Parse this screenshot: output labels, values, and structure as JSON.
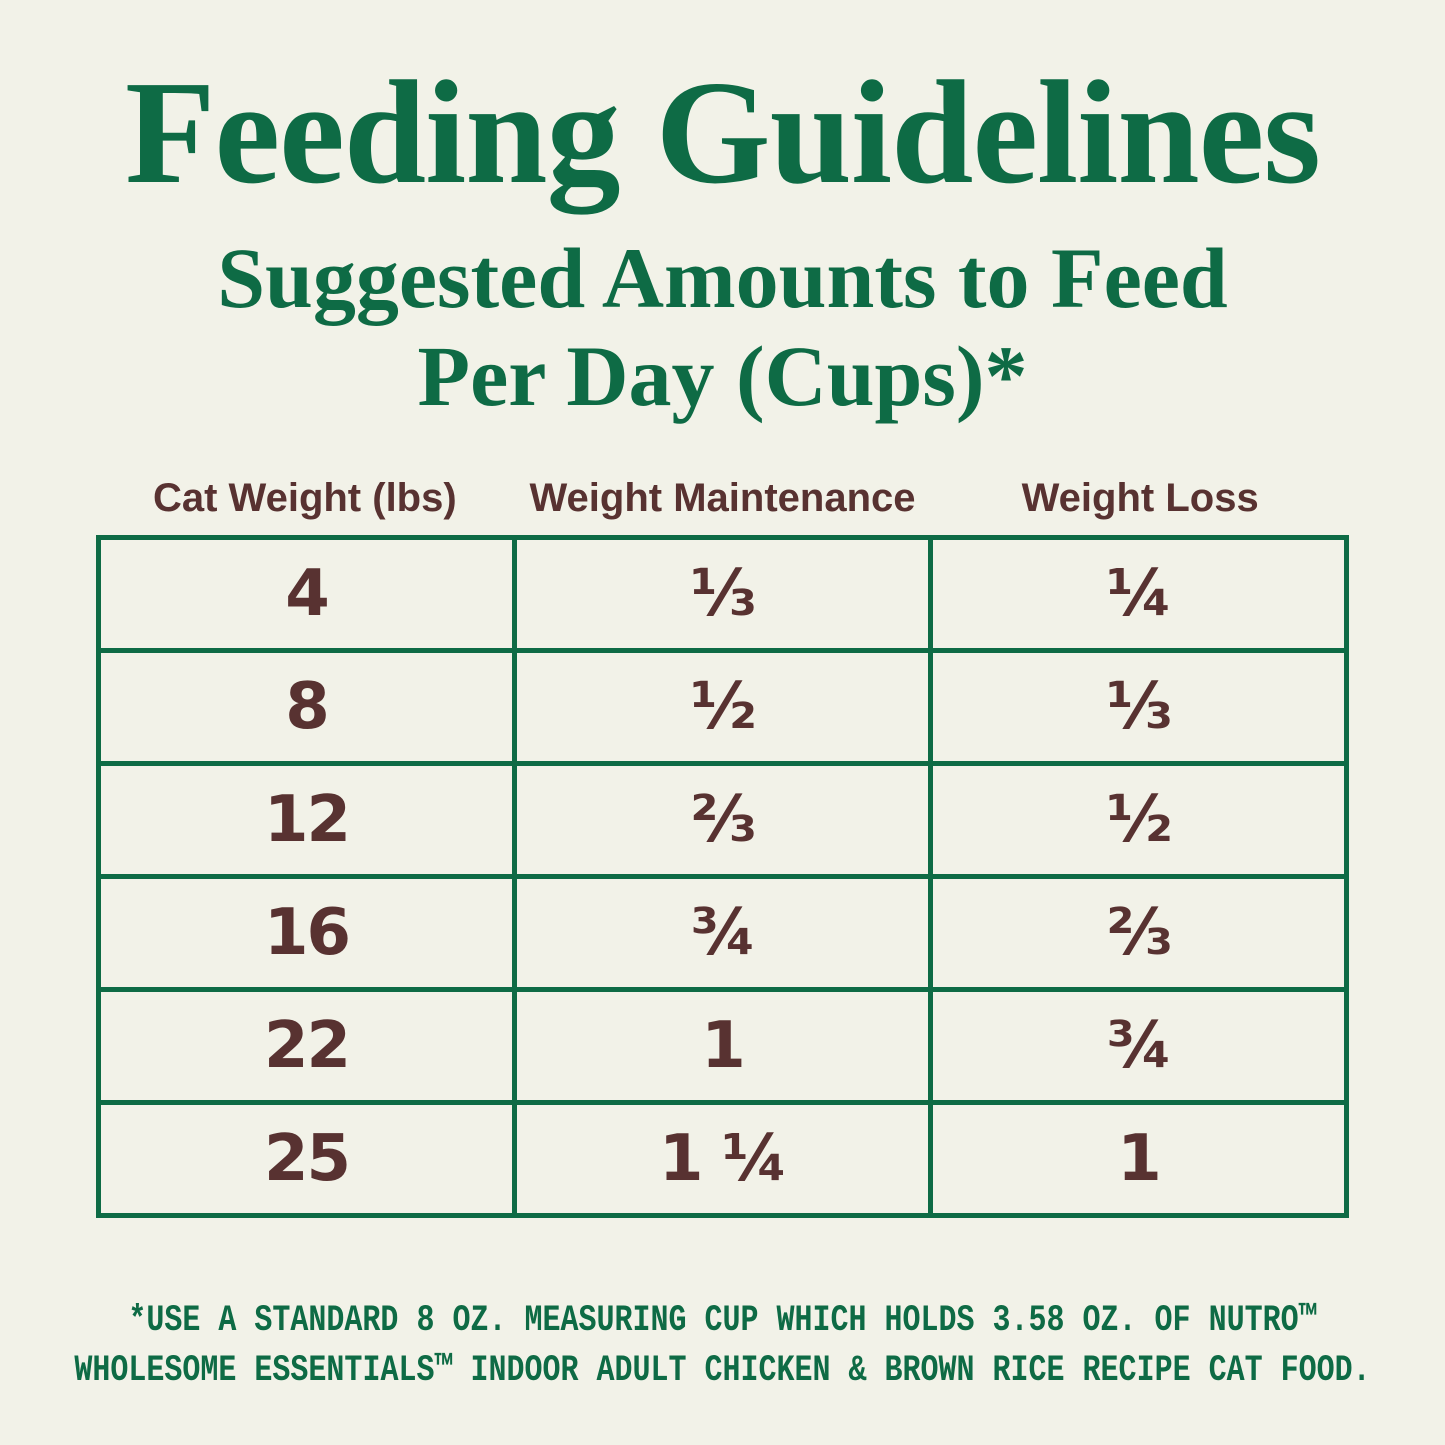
{
  "colors": {
    "background": "#F2F2E8",
    "accent_green": "#0E6B45",
    "accent_brown": "#583231"
  },
  "header": {
    "title": "Feeding Guidelines",
    "subtitle_line1": "Suggested Amounts to Feed",
    "subtitle_line2": "Per Day (Cups)*"
  },
  "table": {
    "columns": [
      "Cat Weight (lbs)",
      "Weight Maintenance",
      "Weight Loss"
    ],
    "rows": [
      [
        "4",
        "⅓",
        "¼"
      ],
      [
        "8",
        "½",
        "⅓"
      ],
      [
        "12",
        "⅔",
        "½"
      ],
      [
        "16",
        "¾",
        "⅔"
      ],
      [
        "22",
        "1",
        "¾"
      ],
      [
        "25",
        "1 ¼",
        "1"
      ]
    ]
  },
  "footnote": {
    "line1": "*USE A STANDARD 8 OZ. MEASURING CUP WHICH HOLDS 3.58 OZ. OF NUTRO™",
    "line2": "WHOLESOME ESSENTIALS™ INDOOR ADULT CHICKEN & BROWN RICE RECIPE CAT FOOD."
  }
}
